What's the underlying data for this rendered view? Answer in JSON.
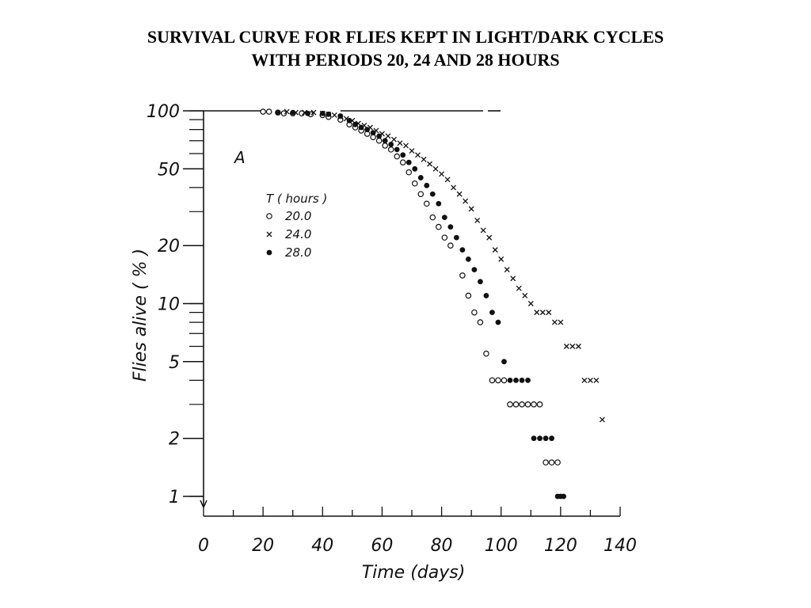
{
  "chart_data": {
    "type": "scatter",
    "title": "SURVIVAL CURVE FOR FLIES KEPT IN LIGHT/DARK CYCLES",
    "subtitle": "WITH PERIODS 20, 24 AND 28 HOURS",
    "panel_label": "A",
    "xlabel": "Time (days)",
    "ylabel": "Flies alive ( % )",
    "xlim": [
      0,
      140
    ],
    "ylim": [
      1,
      100
    ],
    "y_scale": "log",
    "grid": false,
    "x_ticks": [
      0,
      20,
      40,
      60,
      80,
      100,
      120,
      140
    ],
    "x_tick_labels": [
      "0",
      "20",
      "40",
      "60",
      "80",
      "100",
      "120",
      "140"
    ],
    "y_ticks": [
      1,
      2,
      5,
      10,
      20,
      50,
      100
    ],
    "y_tick_labels": [
      "1",
      "2",
      "5",
      "10",
      "20",
      "50",
      "100"
    ],
    "legend": {
      "title": "T ( hours )",
      "placement": "upper-left",
      "entries": [
        "20.0",
        "24.0",
        "28.0"
      ]
    },
    "series": [
      {
        "name": "20.0",
        "marker": "open-circle",
        "x": [
          20,
          22,
          25,
          27,
          30,
          33,
          36,
          40,
          42,
          46,
          49,
          51,
          53,
          55,
          57,
          59,
          61,
          63,
          65,
          67,
          69,
          71,
          73,
          75,
          77,
          79,
          81,
          83,
          87,
          89,
          91,
          93,
          95,
          97,
          99,
          101,
          103,
          105,
          107,
          109,
          111,
          113,
          115,
          117,
          119
        ],
        "y": [
          99,
          99,
          98,
          97,
          97,
          97,
          96,
          95,
          93,
          90,
          85,
          82,
          79,
          76,
          73,
          70,
          66,
          63,
          58,
          54,
          48,
          42,
          37,
          33,
          28,
          25,
          22,
          20,
          14,
          11,
          9,
          8,
          5.5,
          4,
          4,
          4,
          3,
          3,
          3,
          3,
          3,
          3,
          1.5,
          1.5,
          1.5
        ]
      },
      {
        "name": "24.0",
        "marker": "x",
        "x": [
          28,
          31,
          34,
          37,
          40,
          42,
          44,
          46,
          48,
          50,
          52,
          54,
          56,
          58,
          60,
          62,
          64,
          66,
          68,
          70,
          72,
          74,
          76,
          78,
          80,
          82,
          84,
          86,
          88,
          90,
          92,
          94,
          96,
          98,
          100,
          102,
          104,
          106,
          108,
          110,
          112,
          114,
          116,
          118,
          120,
          122,
          124,
          126,
          128,
          130,
          132,
          134
        ],
        "y": [
          99,
          98,
          98,
          98,
          97,
          96,
          95,
          93,
          91,
          89,
          86,
          84,
          82,
          79,
          76,
          74,
          71,
          68,
          66,
          62,
          59,
          56,
          53,
          50,
          47,
          44,
          40,
          37,
          34,
          31,
          27,
          24,
          22,
          19,
          17,
          15,
          13.5,
          12,
          11,
          10,
          9,
          9,
          9,
          8,
          8,
          6,
          6,
          6,
          4,
          4,
          4,
          2.5
        ]
      },
      {
        "name": "28.0",
        "marker": "filled-circle",
        "x": [
          25,
          30,
          35,
          40,
          42,
          46,
          49,
          51,
          53,
          55,
          57,
          59,
          61,
          63,
          65,
          67,
          69,
          71,
          73,
          75,
          77,
          79,
          81,
          83,
          85,
          87,
          89,
          91,
          93,
          95,
          97,
          99,
          101,
          103,
          105,
          107,
          109,
          111,
          113,
          115,
          117,
          119,
          120,
          121
        ],
        "y": [
          98,
          98,
          97,
          97,
          96,
          94,
          89,
          85,
          82,
          80,
          77,
          74,
          70,
          67,
          63,
          59,
          54,
          50,
          45,
          41,
          37,
          33,
          28,
          25,
          22,
          19,
          17,
          15,
          13,
          11,
          9,
          8,
          5,
          4,
          4,
          4,
          4,
          2,
          2,
          2,
          2,
          1,
          1,
          1
        ]
      }
    ]
  }
}
